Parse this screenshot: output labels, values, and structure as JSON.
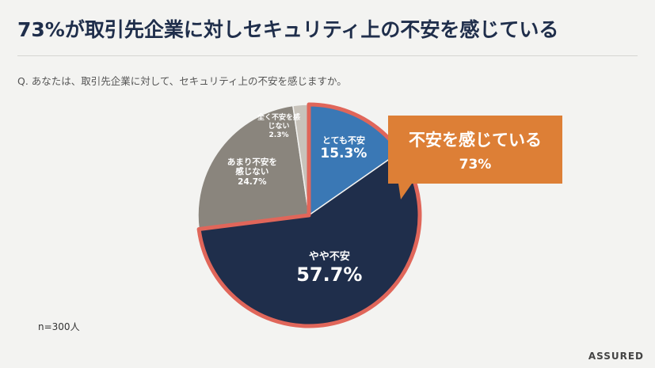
{
  "title": "73%が取引先企業に対しセキュリティ上の不安を感じている",
  "subtitle": "Q. あなたは、取引先企業に対して、セキュリティ上の不安を感じますか。",
  "note": "n=300人",
  "logo": "ASSURED",
  "chart_data": {
    "type": "pie",
    "categories": [
      "とても不安",
      "やや不安",
      "あまり不安を感じない",
      "全く不安を感じない"
    ],
    "values": [
      15.3,
      57.7,
      24.7,
      2.3
    ],
    "value_labels": [
      "15.3%",
      "57.7%",
      "24.7%",
      "2.3%"
    ],
    "colors": [
      "#3a78b5",
      "#1f2e4b",
      "#8a857d",
      "#c8c3bb"
    ],
    "highlight": {
      "label": "不安を感じている",
      "value": 73,
      "value_label": "73%",
      "color": "#dd7f36",
      "outline_color": "#e0665a"
    }
  }
}
